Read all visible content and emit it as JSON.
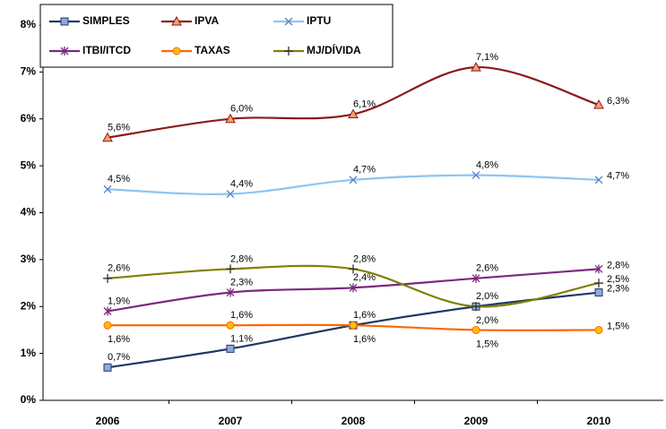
{
  "chart_data": {
    "type": "line",
    "categories": [
      "2006",
      "2007",
      "2008",
      "2009",
      "2010"
    ],
    "ylim": [
      0,
      8
    ],
    "yticks": [
      {
        "value": 0,
        "label": "0%"
      },
      {
        "value": 1,
        "label": "1%"
      },
      {
        "value": 2,
        "label": "2%"
      },
      {
        "value": 3,
        "label": "3%"
      },
      {
        "value": 4,
        "label": "4%"
      },
      {
        "value": 5,
        "label": "5%"
      },
      {
        "value": 6,
        "label": "6%"
      },
      {
        "value": 7,
        "label": "7%"
      },
      {
        "value": 8,
        "label": "8%"
      }
    ],
    "series": [
      {
        "name": "SIMPLES",
        "color": "#1f3864",
        "marker_fill": "#8ea9e0",
        "marker": "square",
        "values": [
          0.7,
          1.1,
          1.6,
          2.0,
          2.3
        ],
        "value_labels": [
          "0,7%",
          "1,1%",
          "1,6%",
          "2,0%",
          "2,3%"
        ]
      },
      {
        "name": "IPVA",
        "color": "#8b1a1a",
        "marker_fill": "#f4a070",
        "marker": "triangle",
        "values": [
          5.6,
          6.0,
          6.1,
          7.1,
          6.3
        ],
        "value_labels": [
          "5,6%",
          "6,0%",
          "6,1%",
          "7,1%",
          "6,3%"
        ]
      },
      {
        "name": "IPTU",
        "color": "#8ec4f0",
        "marker_fill": "#4f81bd",
        "marker": "x",
        "values": [
          4.5,
          4.4,
          4.7,
          4.8,
          4.7
        ],
        "value_labels": [
          "4,5%",
          "4,4%",
          "4,7%",
          "4,8%",
          "4,7%"
        ]
      },
      {
        "name": "ITBI/ITCD",
        "color": "#7b2a7b",
        "marker_fill": "#7b2a7b",
        "marker": "x",
        "values": [
          1.9,
          2.3,
          2.4,
          2.6,
          2.8
        ],
        "value_labels": [
          "1,9%",
          "2,3%",
          "2,4%",
          "2,6%",
          "2,8%"
        ]
      },
      {
        "name": "TAXAS",
        "color": "#ff6600",
        "marker_fill": "#ffc000",
        "marker": "circle",
        "values": [
          1.6,
          1.6,
          1.6,
          1.5,
          1.5
        ],
        "value_labels": [
          "1,6%",
          "1,6%",
          "1,6%",
          "1,5%",
          "1,5%"
        ]
      },
      {
        "name": "MJ/DÍVIDA",
        "color": "#808000",
        "marker_fill": "#808000",
        "marker": "plus",
        "values": [
          2.6,
          2.8,
          2.8,
          2.0,
          2.5
        ],
        "value_labels": [
          "2,6%",
          "2,8%",
          "2,8%",
          "2,0%",
          "2,5%"
        ]
      }
    ],
    "legend": "top-left"
  }
}
